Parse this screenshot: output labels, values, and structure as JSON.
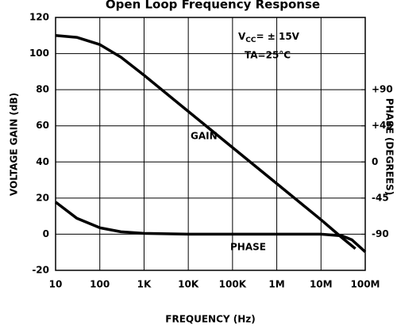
{
  "chart_data": {
    "type": "line",
    "title": "Open Loop Frequency Response",
    "xlabel": "FREQUENCY (Hz)",
    "ylabel": "VOLTAGE GAIN (dB)",
    "y2label": "PHASE (DEGREES)",
    "xscale": "log",
    "xlim": [
      10,
      100000000
    ],
    "xticks": [
      10,
      100,
      {
        "value": 1000,
        "label": "1K"
      },
      {
        "value": 10000,
        "label": "10K"
      },
      {
        "value": 100000,
        "label": "100K"
      },
      {
        "value": 1000000,
        "label": "1M"
      },
      {
        "value": 10000000,
        "label": "10M"
      },
      {
        "value": 100000000,
        "label": "100M"
      }
    ],
    "ylim": [
      -20,
      120
    ],
    "yticks": [
      -20,
      0,
      20,
      40,
      60,
      80,
      100,
      120
    ],
    "y2lim": [
      -135,
      180
    ],
    "y2ticks": [
      {
        "value": 90,
        "label": "+90"
      },
      {
        "value": 45,
        "label": "+45"
      },
      0,
      -45,
      -90
    ],
    "grid": true,
    "series": [
      {
        "name": "GAIN",
        "color": "#000000",
        "x": [
          10,
          30,
          100,
          300,
          1000,
          10000,
          100000,
          1000000,
          10000000,
          30000000,
          60000000
        ],
        "values": [
          110,
          109,
          105,
          98,
          88,
          68,
          48,
          28,
          8,
          -2,
          -8
        ]
      },
      {
        "name": "PHASE",
        "color": "#000000",
        "axis": "y2",
        "x": [
          10,
          30,
          100,
          300,
          1000,
          10000,
          1000000,
          10000000,
          30000000,
          50000000,
          100000000
        ],
        "values": [
          -50,
          -70,
          -82,
          -87,
          -89,
          -90,
          -90,
          -90,
          -92,
          -97,
          -112
        ]
      }
    ],
    "annotations": {
      "vcc": {
        "symbol": "V",
        "subscript": "CC",
        "text": "= ± 15V"
      },
      "ta": "TA=25°C"
    }
  }
}
